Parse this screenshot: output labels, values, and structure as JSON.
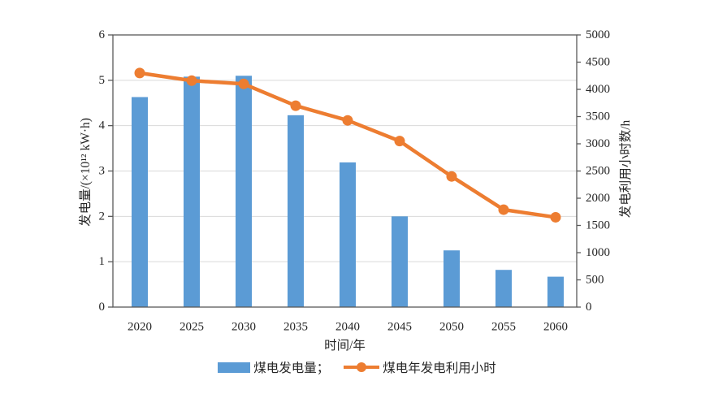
{
  "colors": {
    "bar": "#5B9BD5",
    "line": "#ED7D31",
    "axis": "#595959",
    "grid": "#D9D9D9",
    "text": "#262626"
  },
  "legend": {
    "bar_label": "煤电发电量；",
    "line_label": "煤电年发电利用小时"
  },
  "chart_data": {
    "type": "combo-bar-line",
    "title": "",
    "categories": [
      "2020",
      "2025",
      "2030",
      "2035",
      "2040",
      "2045",
      "2050",
      "2055",
      "2060"
    ],
    "series": [
      {
        "name": "煤电发电量",
        "type": "bar",
        "axis": "left",
        "color": "#5B9BD5",
        "values": [
          4.63,
          5.08,
          5.1,
          4.23,
          3.19,
          2.0,
          1.25,
          0.82,
          0.67
        ]
      },
      {
        "name": "煤电年发电利用小时",
        "type": "line",
        "axis": "right",
        "color": "#ED7D31",
        "values": [
          4300,
          4160,
          4100,
          3700,
          3430,
          3050,
          2400,
          1790,
          1650
        ]
      }
    ],
    "xlabel": "时间/年",
    "ylabel_left": "发电量/(×10¹² kW·h)",
    "ylabel_right": "发电利用小时数/h",
    "ylim_left": [
      0,
      6
    ],
    "yticks_left": [
      0,
      1,
      2,
      3,
      4,
      5,
      6
    ],
    "ylim_right": [
      0,
      5000
    ],
    "yticks_right": [
      0,
      500,
      1000,
      1500,
      2000,
      2500,
      3000,
      3500,
      4000,
      4500,
      5000
    ],
    "grid": "horizontal at left-axis integer ticks",
    "legend_position": "bottom-center",
    "plot_border": "full box"
  }
}
